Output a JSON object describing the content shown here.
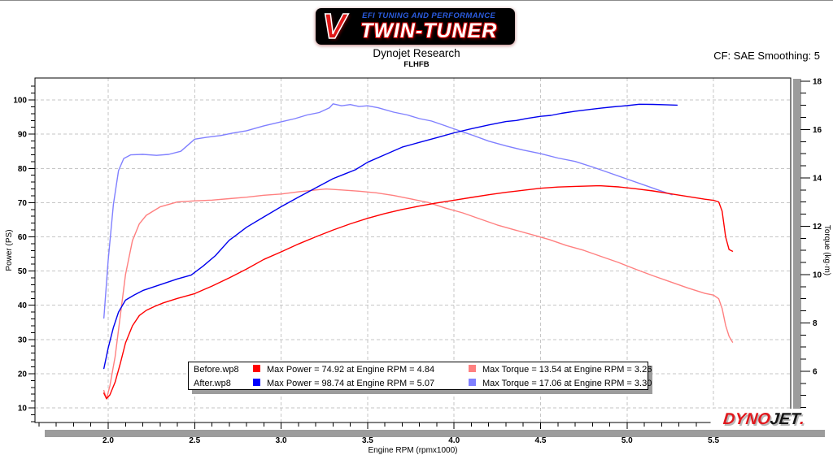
{
  "header": {
    "logo": {
      "v": "V",
      "tagline": "EFI TUNING AND PERFORMANCE",
      "name": "TWIN-TUNER"
    },
    "title": "Dynojet Research",
    "subtitle": "FLHFB",
    "smoothing": "CF: SAE Smoothing: 5"
  },
  "legend": {
    "rows": [
      {
        "file": "Before.wp8",
        "power_color": "#ff0000",
        "power_text": "Max Power = 74.92 at Engine RPM = 4.84",
        "torque_color": "#ff8080",
        "torque_text": "Max Torque = 13.54 at Engine RPM = 3.26"
      },
      {
        "file": "After.wp8",
        "power_color": "#0000ff",
        "power_text": "Max Power = 98.74 at Engine RPM = 5.07",
        "torque_color": "#8080ff",
        "torque_text": "Max Torque = 17.06 at Engine RPM = 3.30"
      }
    ]
  },
  "watermark": {
    "dyno": "DYNO",
    "jet": "JET",
    "dot": "."
  },
  "chart_data": {
    "type": "line",
    "grid": "dashed",
    "grid_color": "#c6c6c6",
    "frame_color": "#000000",
    "shadow_color": "#9c9c9c",
    "x_axis": {
      "label": "Engine RPM (rpmx1000)",
      "min": 1.5767,
      "max": 5.9464,
      "majors": [
        2.0,
        2.5,
        3.0,
        3.5,
        4.0,
        4.5,
        5.0,
        5.5
      ],
      "minor_step": 0.1,
      "minor_start": 1.6,
      "minor_end": 5.9,
      "decimals": 1
    },
    "y_left": {
      "label": "Power (PS)",
      "min": 5.73,
      "max": 106.42,
      "majors": [
        10,
        20,
        30,
        40,
        50,
        60,
        70,
        80,
        90,
        100
      ],
      "minor_step": 2,
      "minor_start": 6,
      "minor_end": 104,
      "decimals": 0
    },
    "y_right": {
      "label": "Torque (kg·m)",
      "min": 3.88,
      "max": 18.13,
      "majors": [
        6,
        8,
        10,
        12,
        14,
        16,
        18
      ],
      "minor_step": 0.5,
      "minor_start": 4,
      "minor_end": 18,
      "decimals": 0
    },
    "series": [
      {
        "name": "After.wp8 Torque",
        "axis": "right",
        "color": "#8080ff",
        "max": {
          "value": 17.06,
          "rpm": 3.3
        },
        "points": [
          [
            1.975,
            8.2
          ],
          [
            2.0,
            10.6
          ],
          [
            2.03,
            12.9
          ],
          [
            2.06,
            14.3
          ],
          [
            2.09,
            14.8
          ],
          [
            2.13,
            14.95
          ],
          [
            2.2,
            14.97
          ],
          [
            2.28,
            14.93
          ],
          [
            2.35,
            14.97
          ],
          [
            2.42,
            15.1
          ],
          [
            2.5,
            15.6
          ],
          [
            2.57,
            15.68
          ],
          [
            2.65,
            15.75
          ],
          [
            2.72,
            15.85
          ],
          [
            2.8,
            15.95
          ],
          [
            2.9,
            16.15
          ],
          [
            3.0,
            16.32
          ],
          [
            3.08,
            16.45
          ],
          [
            3.15,
            16.6
          ],
          [
            3.22,
            16.7
          ],
          [
            3.28,
            16.9
          ],
          [
            3.3,
            17.06
          ],
          [
            3.35,
            16.98
          ],
          [
            3.4,
            17.03
          ],
          [
            3.45,
            16.95
          ],
          [
            3.5,
            16.98
          ],
          [
            3.56,
            16.9
          ],
          [
            3.65,
            16.72
          ],
          [
            3.73,
            16.6
          ],
          [
            3.8,
            16.45
          ],
          [
            3.87,
            16.35
          ],
          [
            3.95,
            16.15
          ],
          [
            4.03,
            15.95
          ],
          [
            4.1,
            15.78
          ],
          [
            4.2,
            15.52
          ],
          [
            4.3,
            15.32
          ],
          [
            4.4,
            15.15
          ],
          [
            4.5,
            15.0
          ],
          [
            4.6,
            14.82
          ],
          [
            4.7,
            14.68
          ],
          [
            4.8,
            14.45
          ],
          [
            4.9,
            14.2
          ],
          [
            5.0,
            13.95
          ],
          [
            5.1,
            13.7
          ],
          [
            5.18,
            13.5
          ],
          [
            5.26,
            13.3
          ]
        ]
      },
      {
        "name": "Before.wp8 Torque",
        "axis": "right",
        "color": "#ff8080",
        "max": {
          "value": 13.54,
          "rpm": 3.26
        },
        "points": [
          [
            1.975,
            5.2
          ],
          [
            1.99,
            4.85
          ],
          [
            2.01,
            5.4
          ],
          [
            2.04,
            6.6
          ],
          [
            2.07,
            8.3
          ],
          [
            2.1,
            10.0
          ],
          [
            2.14,
            11.4
          ],
          [
            2.18,
            12.1
          ],
          [
            2.22,
            12.45
          ],
          [
            2.3,
            12.8
          ],
          [
            2.4,
            13.0
          ],
          [
            2.5,
            13.05
          ],
          [
            2.6,
            13.08
          ],
          [
            2.7,
            13.14
          ],
          [
            2.8,
            13.2
          ],
          [
            2.9,
            13.28
          ],
          [
            3.0,
            13.33
          ],
          [
            3.1,
            13.42
          ],
          [
            3.2,
            13.5
          ],
          [
            3.26,
            13.54
          ],
          [
            3.35,
            13.5
          ],
          [
            3.45,
            13.45
          ],
          [
            3.55,
            13.38
          ],
          [
            3.65,
            13.27
          ],
          [
            3.75,
            13.13
          ],
          [
            3.85,
            12.98
          ],
          [
            3.95,
            12.75
          ],
          [
            4.05,
            12.55
          ],
          [
            4.15,
            12.3
          ],
          [
            4.25,
            12.05
          ],
          [
            4.35,
            11.85
          ],
          [
            4.45,
            11.65
          ],
          [
            4.55,
            11.45
          ],
          [
            4.65,
            11.2
          ],
          [
            4.75,
            11.0
          ],
          [
            4.85,
            10.75
          ],
          [
            4.95,
            10.5
          ],
          [
            5.05,
            10.22
          ],
          [
            5.15,
            9.95
          ],
          [
            5.25,
            9.7
          ],
          [
            5.35,
            9.45
          ],
          [
            5.45,
            9.22
          ],
          [
            5.5,
            9.15
          ],
          [
            5.53,
            9.0
          ],
          [
            5.55,
            8.6
          ],
          [
            5.57,
            7.9
          ],
          [
            5.59,
            7.45
          ],
          [
            5.61,
            7.2
          ]
        ]
      },
      {
        "name": "Before.wp8 Power",
        "axis": "left",
        "color": "#ff0000",
        "max": {
          "value": 74.92,
          "rpm": 4.84
        },
        "points": [
          [
            1.975,
            14.3
          ],
          [
            1.99,
            12.7
          ],
          [
            2.01,
            13.8
          ],
          [
            2.04,
            17.5
          ],
          [
            2.07,
            23.0
          ],
          [
            2.1,
            29.0
          ],
          [
            2.14,
            34.0
          ],
          [
            2.18,
            37.0
          ],
          [
            2.22,
            38.5
          ],
          [
            2.27,
            39.7
          ],
          [
            2.32,
            40.7
          ],
          [
            2.4,
            42.0
          ],
          [
            2.5,
            43.4
          ],
          [
            2.6,
            45.6
          ],
          [
            2.7,
            48.0
          ],
          [
            2.8,
            50.6
          ],
          [
            2.9,
            53.4
          ],
          [
            3.0,
            55.6
          ],
          [
            3.1,
            57.9
          ],
          [
            3.2,
            60.0
          ],
          [
            3.3,
            62.0
          ],
          [
            3.4,
            63.8
          ],
          [
            3.5,
            65.4
          ],
          [
            3.6,
            66.8
          ],
          [
            3.7,
            68.0
          ],
          [
            3.8,
            69.0
          ],
          [
            3.9,
            69.9
          ],
          [
            4.0,
            70.7
          ],
          [
            4.1,
            71.5
          ],
          [
            4.2,
            72.3
          ],
          [
            4.3,
            73.0
          ],
          [
            4.4,
            73.6
          ],
          [
            4.5,
            74.2
          ],
          [
            4.6,
            74.55
          ],
          [
            4.7,
            74.75
          ],
          [
            4.84,
            74.92
          ],
          [
            4.95,
            74.6
          ],
          [
            5.05,
            74.05
          ],
          [
            5.15,
            73.4
          ],
          [
            5.25,
            72.6
          ],
          [
            5.35,
            71.8
          ],
          [
            5.45,
            71.0
          ],
          [
            5.5,
            70.65
          ],
          [
            5.53,
            70.2
          ],
          [
            5.55,
            67.5
          ],
          [
            5.57,
            60.0
          ],
          [
            5.59,
            56.3
          ],
          [
            5.61,
            55.8
          ]
        ]
      },
      {
        "name": "After.wp8 Power",
        "axis": "left",
        "color": "#0000ee",
        "max": {
          "value": 98.74,
          "rpm": 5.07
        },
        "points": [
          [
            1.975,
            21.5
          ],
          [
            2.0,
            27.5
          ],
          [
            2.03,
            33.5
          ],
          [
            2.06,
            38.0
          ],
          [
            2.1,
            41.5
          ],
          [
            2.15,
            43.0
          ],
          [
            2.2,
            44.3
          ],
          [
            2.3,
            46.0
          ],
          [
            2.4,
            47.7
          ],
          [
            2.48,
            48.8
          ],
          [
            2.55,
            51.5
          ],
          [
            2.62,
            54.5
          ],
          [
            2.7,
            59.0
          ],
          [
            2.74,
            60.5
          ],
          [
            2.8,
            62.8
          ],
          [
            2.9,
            65.8
          ],
          [
            3.0,
            68.8
          ],
          [
            3.1,
            71.6
          ],
          [
            3.2,
            74.3
          ],
          [
            3.3,
            77.0
          ],
          [
            3.36,
            78.2
          ],
          [
            3.43,
            79.6
          ],
          [
            3.5,
            81.8
          ],
          [
            3.6,
            84.0
          ],
          [
            3.7,
            86.2
          ],
          [
            3.8,
            87.6
          ],
          [
            3.9,
            89.0
          ],
          [
            4.0,
            90.4
          ],
          [
            4.1,
            91.6
          ],
          [
            4.2,
            92.7
          ],
          [
            4.3,
            93.7
          ],
          [
            4.36,
            94.0
          ],
          [
            4.42,
            94.6
          ],
          [
            4.5,
            95.2
          ],
          [
            4.56,
            95.5
          ],
          [
            4.62,
            96.1
          ],
          [
            4.7,
            96.7
          ],
          [
            4.78,
            97.2
          ],
          [
            4.85,
            97.6
          ],
          [
            4.92,
            98.0
          ],
          [
            5.0,
            98.35
          ],
          [
            5.07,
            98.74
          ],
          [
            5.15,
            98.7
          ],
          [
            5.22,
            98.6
          ],
          [
            5.29,
            98.5
          ]
        ]
      }
    ]
  }
}
